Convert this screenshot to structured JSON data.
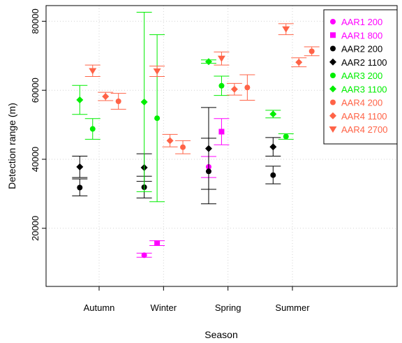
{
  "chart_data": {
    "type": "scatter",
    "title": "",
    "xlabel": "Season",
    "ylabel": "Detection range (m)",
    "categories": [
      "Autumn",
      "Winter",
      "Spring",
      "Summer"
    ],
    "ylim": [
      0,
      82000
    ],
    "yticks": [
      20000,
      40000,
      60000,
      80000
    ],
    "yticklabels": [
      "20000",
      "40000",
      "60000",
      "80000"
    ],
    "grid": true,
    "legend_position": "top-right",
    "series": [
      {
        "name": "AAR1 200",
        "color": "#ff00ff",
        "marker": "circle",
        "offset": -0.3,
        "points": [
          null,
          {
            "y": 12200,
            "lo": 11600,
            "hi": 12800
          },
          {
            "y": 37800,
            "lo": 34700,
            "hi": 40800
          },
          null
        ]
      },
      {
        "name": "AAR1 800",
        "color": "#ff00ff",
        "marker": "square",
        "offset": -0.1,
        "points": [
          null,
          {
            "y": 15700,
            "lo": 15000,
            "hi": 16400
          },
          {
            "y": 48000,
            "lo": 44200,
            "hi": 51800
          },
          null
        ]
      },
      {
        "name": "AAR2 200",
        "color": "#000000",
        "marker": "circle",
        "offset": -0.3,
        "points": [
          {
            "y": 31800,
            "lo": 29400,
            "hi": 34300
          },
          {
            "y": 31900,
            "lo": 28800,
            "hi": 35100
          },
          {
            "y": 36500,
            "lo": 27100,
            "hi": 46100
          },
          {
            "y": 35400,
            "lo": 32900,
            "hi": 38000
          }
        ]
      },
      {
        "name": "AAR2 1100",
        "color": "#000000",
        "marker": "diamond",
        "offset": -0.3,
        "points": [
          {
            "y": 37800,
            "lo": 34700,
            "hi": 40900
          },
          {
            "y": 37600,
            "lo": 33600,
            "hi": 41600
          },
          {
            "y": 43100,
            "lo": 31300,
            "hi": 55000
          },
          {
            "y": 43600,
            "lo": 40900,
            "hi": 46300
          }
        ]
      },
      {
        "name": "AAR3 200",
        "color": "#00ee00",
        "marker": "circle",
        "offset": -0.1,
        "points": [
          {
            "y": 48800,
            "lo": 45800,
            "hi": 51800
          },
          {
            "y": 51900,
            "lo": 27700,
            "hi": 76100
          },
          {
            "y": 61300,
            "lo": 58500,
            "hi": 64100
          },
          {
            "y": 46600,
            "lo": 45800,
            "hi": 47400
          }
        ]
      },
      {
        "name": "AAR3 1100",
        "color": "#00ee00",
        "marker": "diamond",
        "offset": -0.3,
        "points": [
          {
            "y": 57200,
            "lo": 53000,
            "hi": 61400
          },
          {
            "y": 56600,
            "lo": 30600,
            "hi": 82600
          },
          {
            "y": 68300,
            "lo": 67800,
            "hi": 68800
          },
          {
            "y": 53100,
            "lo": 52000,
            "hi": 54200
          }
        ]
      },
      {
        "name": "AAR4 200",
        "color": "#ff6347",
        "marker": "circle",
        "offset": 0.3,
        "points": [
          {
            "y": 56800,
            "lo": 54500,
            "hi": 59100
          },
          {
            "y": 43500,
            "lo": 41600,
            "hi": 45400
          },
          {
            "y": 60800,
            "lo": 57100,
            "hi": 64500
          },
          {
            "y": 71300,
            "lo": 70000,
            "hi": 72600
          }
        ]
      },
      {
        "name": "AAR4 1100",
        "color": "#ff6347",
        "marker": "diamond",
        "offset": 0.1,
        "points": [
          {
            "y": 58200,
            "lo": 57000,
            "hi": 59400
          },
          {
            "y": 45400,
            "lo": 43600,
            "hi": 47200
          },
          {
            "y": 60300,
            "lo": 58600,
            "hi": 62000
          },
          {
            "y": 68100,
            "lo": 66800,
            "hi": 69400
          }
        ]
      },
      {
        "name": "AAR4 2700",
        "color": "#ff6347",
        "marker": "triangle-down",
        "offset": -0.1,
        "points": [
          {
            "y": 65600,
            "lo": 64000,
            "hi": 67300
          },
          {
            "y": 65500,
            "lo": 64000,
            "hi": 67000
          },
          {
            "y": 69200,
            "lo": 67300,
            "hi": 71100
          },
          {
            "y": 77700,
            "lo": 76100,
            "hi": 79300
          }
        ]
      }
    ]
  }
}
